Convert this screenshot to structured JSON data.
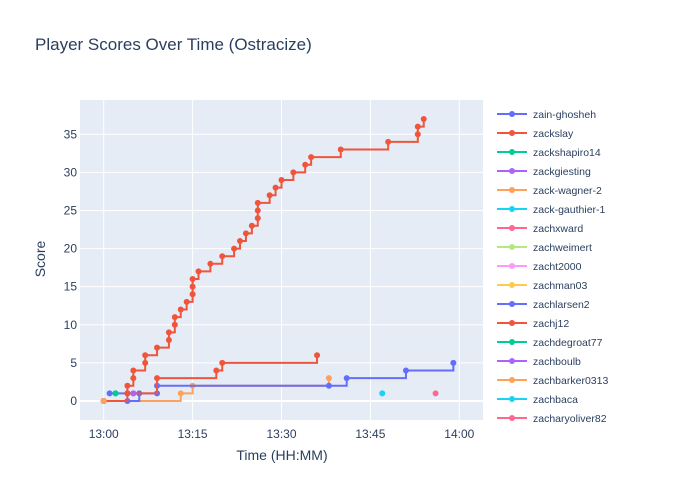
{
  "chart_data": {
    "type": "line",
    "line_shape": "step",
    "title": "Player Scores Over Time (Ostracize)",
    "xlabel": "Time (HH:MM)",
    "ylabel": "Score",
    "x_ticks": [
      "13:00",
      "13:15",
      "13:30",
      "13:45",
      "14:00"
    ],
    "y_ticks": [
      0,
      5,
      10,
      15,
      20,
      25,
      30,
      35
    ],
    "xlim": [
      "12:56",
      "14:04"
    ],
    "ylim": [
      -2.5,
      39.5
    ],
    "grid": true,
    "legend_placement": "right",
    "series": [
      {
        "name": "zain-ghosheh",
        "color": "#636efa",
        "points": [
          [
            "13:01",
            1
          ],
          [
            "13:04",
            1
          ]
        ]
      },
      {
        "name": "zackslay",
        "color": "#EF553B",
        "points": [
          [
            "13:04",
            1
          ],
          [
            "13:04",
            2
          ],
          [
            "13:05",
            3
          ],
          [
            "13:05",
            4
          ],
          [
            "13:07",
            5
          ],
          [
            "13:07",
            6
          ],
          [
            "13:09",
            7
          ],
          [
            "13:11",
            8
          ],
          [
            "13:11",
            9
          ],
          [
            "13:12",
            10
          ],
          [
            "13:12",
            11
          ],
          [
            "13:13",
            12
          ],
          [
            "13:14",
            13
          ],
          [
            "13:15",
            14
          ],
          [
            "13:15",
            15
          ],
          [
            "13:15",
            16
          ],
          [
            "13:16",
            17
          ],
          [
            "13:18",
            18
          ],
          [
            "13:20",
            19
          ],
          [
            "13:22",
            20
          ],
          [
            "13:23",
            21
          ],
          [
            "13:24",
            22
          ],
          [
            "13:25",
            23
          ],
          [
            "13:26",
            24
          ],
          [
            "13:26",
            25
          ],
          [
            "13:26",
            26
          ],
          [
            "13:28",
            27
          ],
          [
            "13:29",
            28
          ],
          [
            "13:30",
            29
          ],
          [
            "13:32",
            30
          ],
          [
            "13:34",
            31
          ],
          [
            "13:35",
            32
          ],
          [
            "13:40",
            33
          ],
          [
            "13:48",
            34
          ],
          [
            "13:53",
            35
          ],
          [
            "13:53",
            36
          ],
          [
            "13:54",
            37
          ]
        ]
      },
      {
        "name": "zackshapiro14",
        "color": "#00cc96",
        "points": [
          [
            "13:02",
            1
          ]
        ]
      },
      {
        "name": "zackgiesting",
        "color": "#ab63fa",
        "points": [
          [
            "13:05",
            1
          ]
        ]
      },
      {
        "name": "zack-wagner-2",
        "color": "#FFA15A",
        "points": [
          [
            "13:00",
            0
          ],
          [
            "13:13",
            1
          ],
          [
            "13:15",
            2
          ],
          [
            "13:38",
            3
          ]
        ]
      },
      {
        "name": "zack-gauthier-1",
        "color": "#19d3f3",
        "points": [
          [
            "13:47",
            1
          ]
        ]
      },
      {
        "name": "zachxward",
        "color": "#FF6692",
        "points": [
          [
            "13:56",
            1
          ]
        ]
      },
      {
        "name": "zachweimert",
        "color": "#B6E880",
        "points": []
      },
      {
        "name": "zacht2000",
        "color": "#FF97FF",
        "points": []
      },
      {
        "name": "zachman03",
        "color": "#FECB52",
        "points": [
          [
            "13:00",
            0
          ]
        ]
      },
      {
        "name": "zachlarsen2",
        "color": "#636efa",
        "points": [
          [
            "13:00",
            0
          ],
          [
            "13:04",
            0
          ],
          [
            "13:06",
            1
          ],
          [
            "13:09",
            1
          ],
          [
            "13:09",
            2
          ],
          [
            "13:38",
            2
          ],
          [
            "13:41",
            3
          ],
          [
            "13:51",
            4
          ],
          [
            "13:59",
            5
          ]
        ]
      },
      {
        "name": "zachj12",
        "color": "#EF553B",
        "points": [
          [
            "13:00",
            0
          ],
          [
            "13:04",
            1
          ],
          [
            "13:09",
            3
          ],
          [
            "13:19",
            4
          ],
          [
            "13:20",
            5
          ],
          [
            "13:36",
            6
          ]
        ]
      },
      {
        "name": "zachdegroat77",
        "color": "#00cc96",
        "points": [
          [
            "13:02",
            1
          ]
        ]
      },
      {
        "name": "zachboulb",
        "color": "#ab63fa",
        "points": [
          [
            "13:05",
            1
          ]
        ]
      },
      {
        "name": "zachbarker0313",
        "color": "#FFA15A",
        "points": [
          [
            "13:00",
            0
          ]
        ]
      },
      {
        "name": "zachbaca",
        "color": "#19d3f3",
        "points": []
      },
      {
        "name": "zacharyoliver82",
        "color": "#FF6692",
        "points": []
      }
    ]
  }
}
